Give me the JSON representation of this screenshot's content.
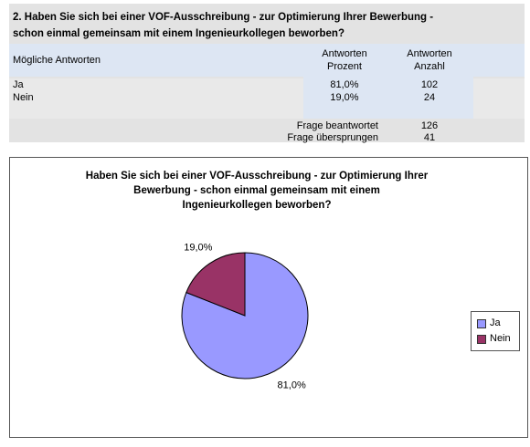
{
  "table": {
    "title_line1": "2. Haben Sie sich bei einer VOF-Ausschreibung - zur Optimierung Ihrer Bewerbung -",
    "title_line2": "schon einmal gemeinsam mit einem Ingenieurkollegen beworben?",
    "header": {
      "answers": "Mögliche Antworten",
      "pct_line1": "Antworten",
      "pct_line2": "Prozent",
      "cnt_line1": "Antworten",
      "cnt_line2": "Anzahl"
    },
    "rows": [
      {
        "label": "Ja",
        "percent": "81,0%",
        "count": "102"
      },
      {
        "label": "Nein",
        "percent": "19,0%",
        "count": "24"
      }
    ],
    "answered_label": "Frage beantwortet",
    "answered_value": "126",
    "skipped_label": "Frage übersprungen",
    "skipped_value": "41"
  },
  "chart_data": {
    "type": "pie",
    "title_line1": "Haben Sie sich bei einer VOF-Ausschreibung - zur Optimierung Ihrer",
    "title_line2": "Bewerbung - schon einmal gemeinsam mit einem",
    "title_line3": "Ingenieurkollegen beworben?",
    "categories": [
      "Ja",
      "Nein"
    ],
    "values": [
      81.0,
      19.0
    ],
    "labels": [
      "81,0%",
      "19,0%"
    ],
    "colors": [
      "#9999ff",
      "#993366"
    ],
    "legend_position": "right"
  }
}
